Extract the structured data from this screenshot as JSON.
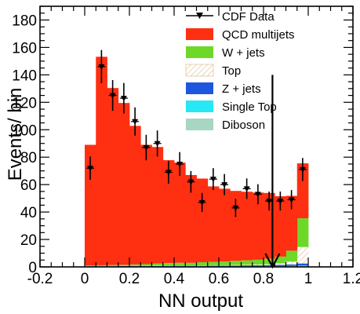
{
  "chart_data": {
    "type": "bar",
    "stacked": true,
    "xlabel": "NN output",
    "ylabel": "Events/ bin",
    "xlim": [
      -0.2,
      1.2
    ],
    "ylim": [
      0,
      190
    ],
    "bin_width": 0.05,
    "x_ticks": [
      "-0.2",
      "0",
      "0.2",
      "0.4",
      "0.6",
      "0.8",
      "1",
      "1.2"
    ],
    "x_tick_values": [
      -0.2,
      0,
      0.2,
      0.4,
      0.6,
      0.8,
      1.0,
      1.2
    ],
    "y_ticks": [
      "0",
      "20",
      "40",
      "60",
      "80",
      "100",
      "120",
      "140",
      "160",
      "180"
    ],
    "y_tick_values": [
      0,
      20,
      40,
      60,
      80,
      100,
      120,
      140,
      160,
      180
    ],
    "bin_edges": [
      0.0,
      0.05,
      0.1,
      0.15,
      0.2,
      0.25,
      0.3,
      0.35,
      0.4,
      0.45,
      0.5,
      0.55,
      0.6,
      0.65,
      0.7,
      0.75,
      0.8,
      0.85,
      0.9,
      0.95,
      1.0
    ],
    "series": [
      {
        "name": "Diboson",
        "color": "#a7d6c2",
        "values": [
          0.2,
          0.2,
          0.2,
          0.2,
          0.3,
          0.3,
          0.3,
          0.3,
          0.3,
          0.3,
          0.3,
          0.3,
          0.3,
          0.3,
          0.4,
          0.4,
          0.4,
          0.4,
          0.5,
          0.5
        ]
      },
      {
        "name": "Single Top",
        "color": "#27e8f4",
        "values": [
          0.1,
          0.1,
          0.1,
          0.1,
          0.1,
          0.1,
          0.1,
          0.1,
          0.1,
          0.1,
          0.1,
          0.1,
          0.1,
          0.1,
          0.1,
          0.1,
          0.1,
          0.2,
          0.3,
          0.5
        ]
      },
      {
        "name": "Z + jets",
        "color": "#1f56e0",
        "values": [
          0.2,
          0.2,
          0.2,
          0.3,
          0.3,
          0.3,
          0.3,
          0.4,
          0.4,
          0.4,
          0.4,
          0.5,
          0.5,
          0.6,
          0.6,
          0.7,
          0.8,
          0.9,
          1.0,
          1.5
        ]
      },
      {
        "name": "Top",
        "color": "#ffffff",
        "pattern": "hatched",
        "values": [
          0.1,
          0.1,
          0.1,
          0.1,
          0.1,
          0.1,
          0.2,
          0.2,
          0.2,
          0.2,
          0.3,
          0.3,
          0.3,
          0.4,
          0.4,
          0.5,
          0.6,
          1.0,
          2.0,
          12.0
        ]
      },
      {
        "name": "W + jets",
        "color": "#6ed829",
        "values": [
          0.4,
          0.6,
          0.8,
          0.8,
          1.0,
          1.2,
          1.5,
          1.8,
          2.0,
          2.0,
          2.3,
          2.5,
          2.8,
          3.0,
          3.3,
          3.5,
          4.0,
          5.0,
          8.0,
          21.0
        ]
      },
      {
        "name": "QCD multijets",
        "color": "#ff2f12",
        "values": [
          88.0,
          152.0,
          129.0,
          118.0,
          101.0,
          87.0,
          85.0,
          75.0,
          73.0,
          64.0,
          61.0,
          55.0,
          53.0,
          51.0,
          50.0,
          49.0,
          48.0,
          44.0,
          40.0,
          40.0
        ]
      }
    ],
    "data": {
      "name": "CDF Data",
      "color": "#000000",
      "x": [
        0.025,
        0.075,
        0.125,
        0.175,
        0.225,
        0.275,
        0.325,
        0.375,
        0.425,
        0.475,
        0.525,
        0.575,
        0.625,
        0.675,
        0.725,
        0.775,
        0.825,
        0.875,
        0.925,
        0.975
      ],
      "y": [
        72,
        146,
        125,
        123,
        106,
        87,
        90,
        69,
        75,
        62,
        47,
        64,
        60,
        43,
        57,
        53,
        48,
        48,
        49,
        71
      ],
      "yerr": [
        8.5,
        12.1,
        11.2,
        11.1,
        10.3,
        9.3,
        9.5,
        8.3,
        8.7,
        7.9,
        6.9,
        8.0,
        7.7,
        6.6,
        7.5,
        7.3,
        6.9,
        6.9,
        7.0,
        8.4
      ]
    },
    "annotation": {
      "type": "arrow",
      "x": 0.84,
      "y_from": 140,
      "y_to": 0,
      "color": "#000000"
    },
    "legend": {
      "position": "top-right",
      "entries": [
        {
          "label": "CDF Data",
          "style": "marker"
        },
        {
          "label": "QCD multijets",
          "style": "box",
          "color": "#ff2f12"
        },
        {
          "label": "W + jets",
          "style": "box",
          "color": "#6ed829"
        },
        {
          "label": "Top",
          "style": "hatched"
        },
        {
          "label": "Z + jets",
          "style": "box",
          "color": "#1f56e0"
        },
        {
          "label": "Single Top",
          "style": "box",
          "color": "#27e8f4"
        },
        {
          "label": "Diboson",
          "style": "box",
          "color": "#a7d6c2"
        }
      ]
    },
    "grid": false
  }
}
